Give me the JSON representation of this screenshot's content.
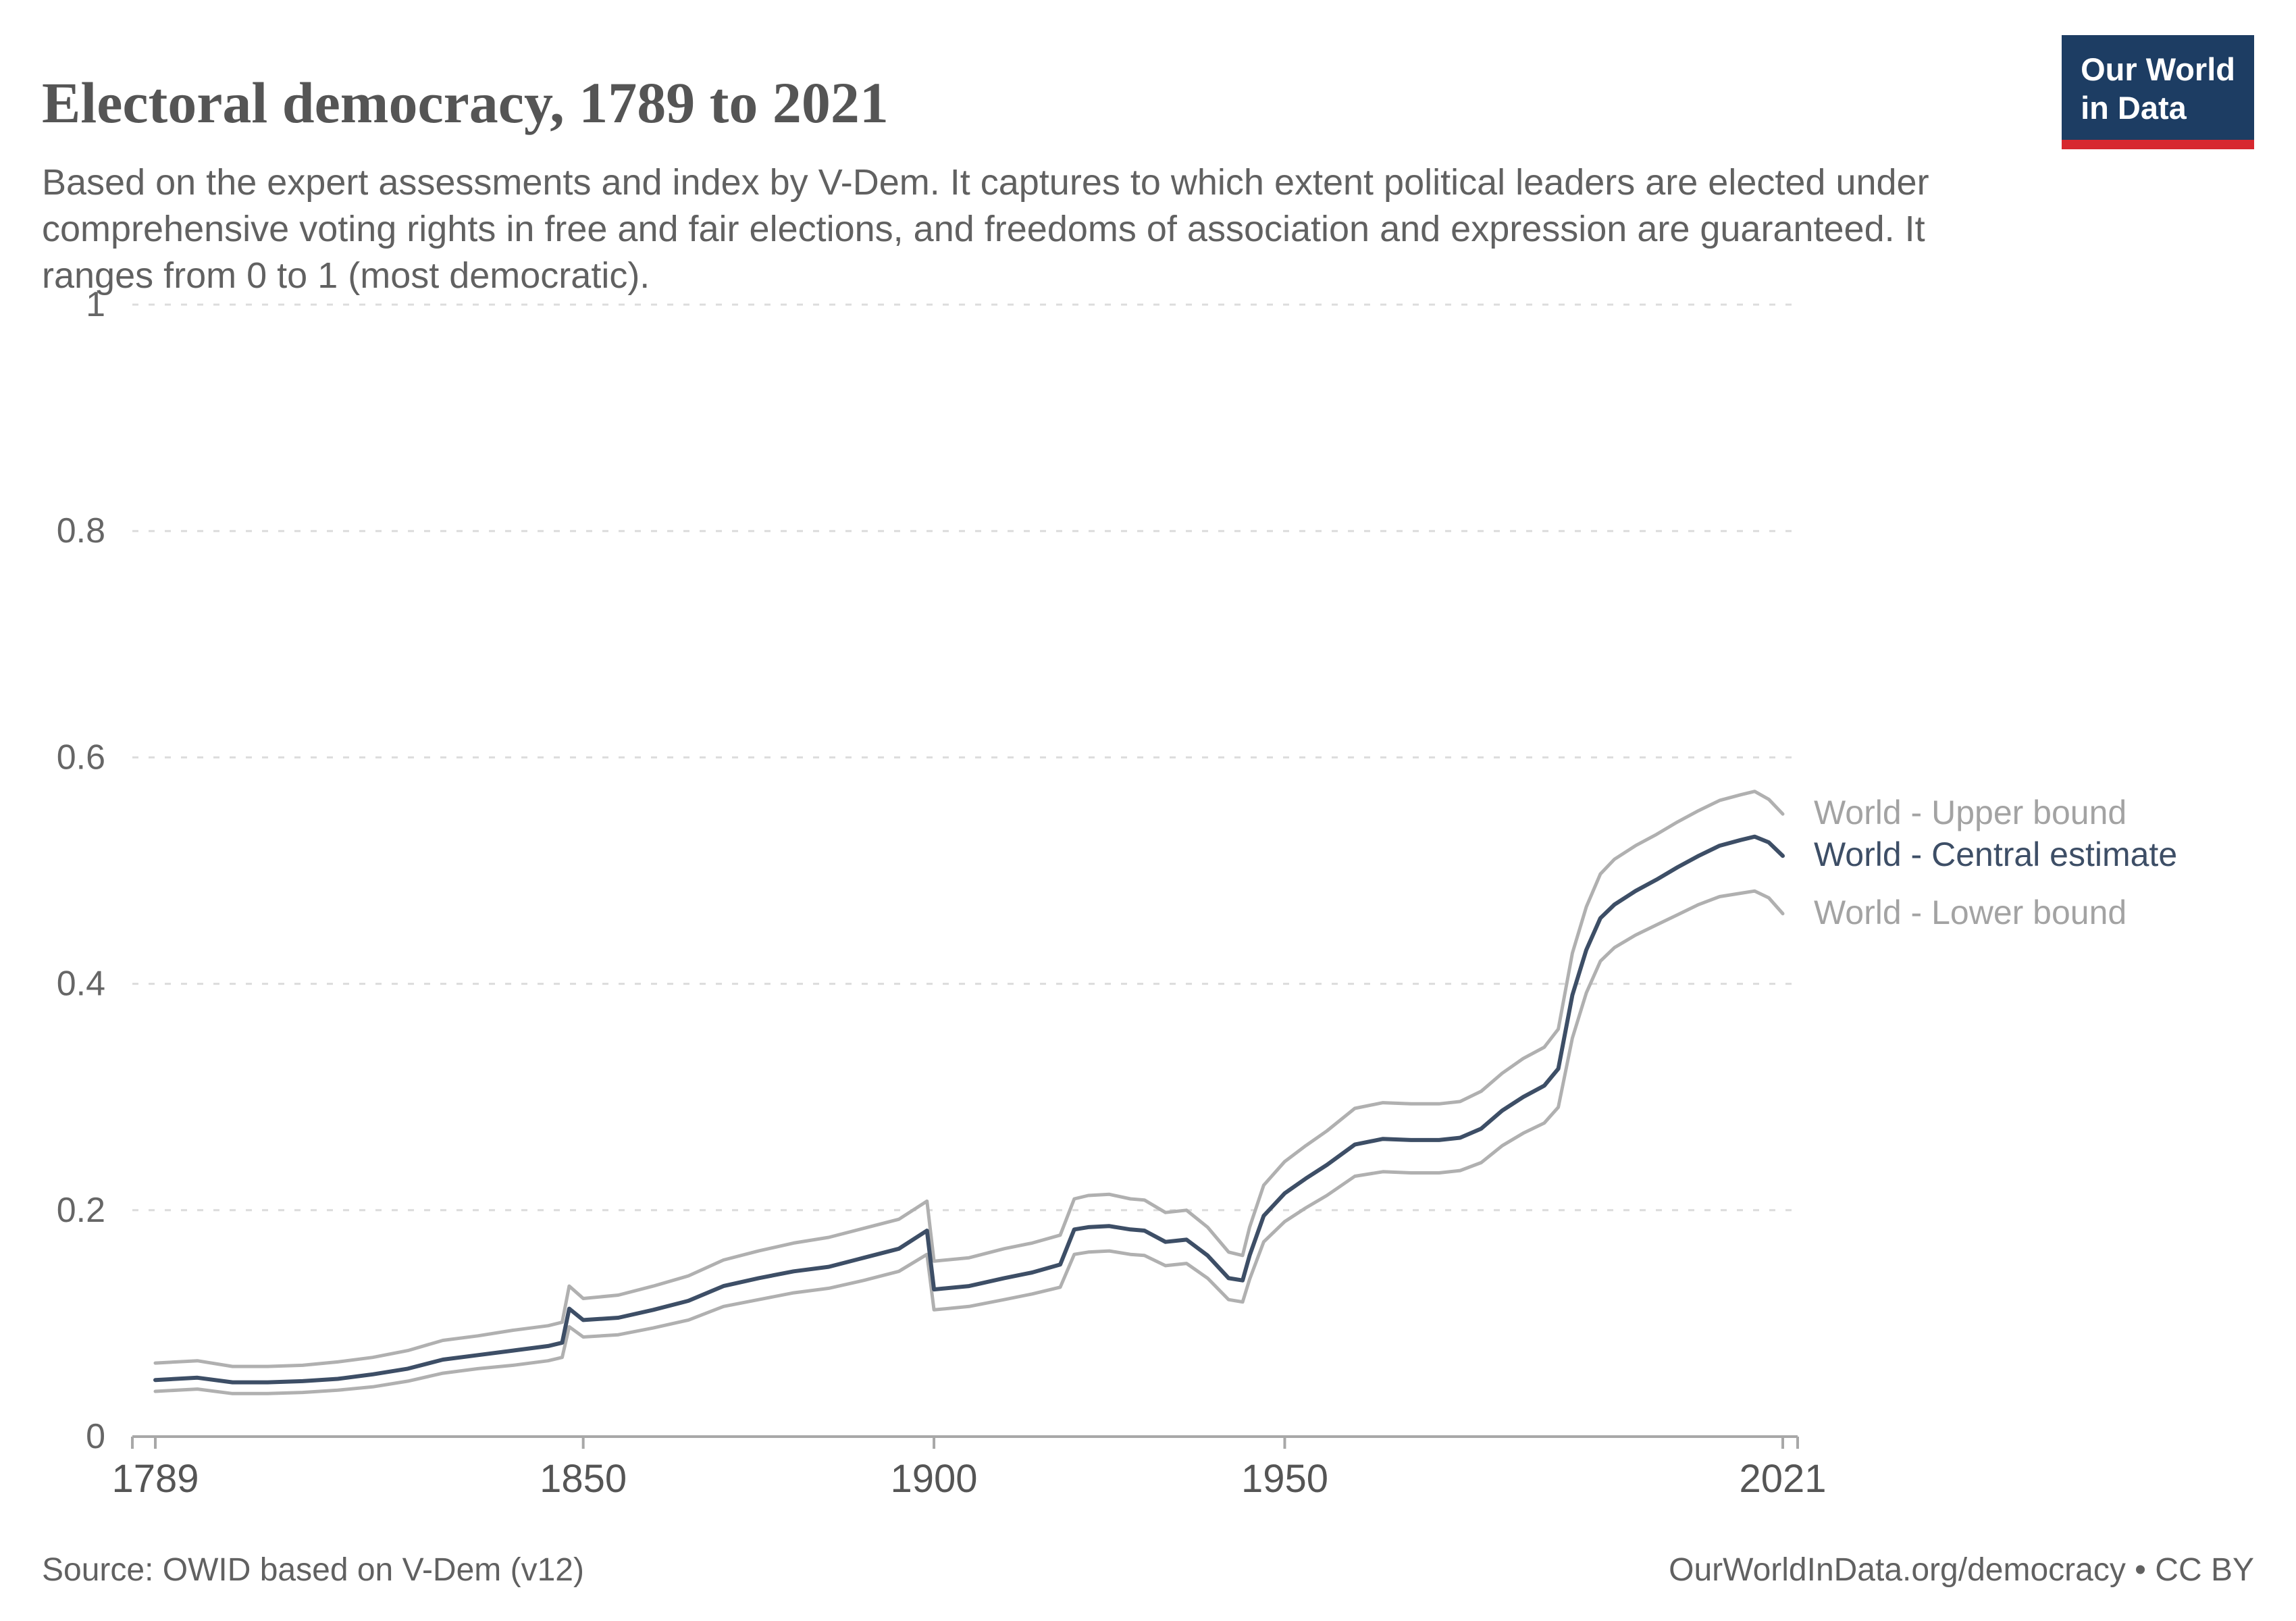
{
  "header": {
    "title": "Electoral democracy, 1789 to 2021",
    "subtitle": "Based on the expert assessments and index by V-Dem. It captures to which extent political leaders are elected under comprehensive voting rights in free and fair elections, and freedoms of association and expression are guaranteed. It ranges from 0 to 1 (most democratic)."
  },
  "brand": {
    "logo_line1": "Our World",
    "logo_line2": "in Data",
    "logo_bg": "#1d3d63",
    "logo_accent": "#d7282f"
  },
  "footer": {
    "source": "Source: OWID based on V-Dem (v12)",
    "credit": "OurWorldInData.org/democracy • CC BY"
  },
  "chart_data": {
    "type": "line",
    "title": "Electoral democracy, 1789 to 2021",
    "xlabel": "",
    "ylabel": "",
    "xlim": [
      1789,
      2021
    ],
    "ylim": [
      0,
      1
    ],
    "x_ticks": [
      1789,
      1850,
      1900,
      1950,
      2021
    ],
    "x_tick_labels": [
      "1789",
      "1850",
      "1900",
      "1950",
      "2021"
    ],
    "y_ticks": [
      0,
      0.2,
      0.4,
      0.6,
      0.8,
      1
    ],
    "y_tick_labels": [
      "0",
      "0.2",
      "0.4",
      "0.6",
      "0.8",
      "1"
    ],
    "grid": "horizontal-dashed",
    "legend_position": "right-of-line-ends",
    "colors": {
      "central": "#3d4e66",
      "bounds": "#b0b0b0",
      "legend_bounds_text": "#a3a3a3",
      "axis_text": "#666666",
      "x_axis_text": "#555555",
      "gridline": "#dcdcdc",
      "axis_line": "#a8a8a8"
    },
    "x": [
      1789,
      1795,
      1800,
      1805,
      1810,
      1815,
      1820,
      1825,
      1830,
      1835,
      1840,
      1845,
      1847,
      1848,
      1850,
      1855,
      1860,
      1865,
      1870,
      1875,
      1880,
      1885,
      1890,
      1895,
      1899,
      1900,
      1905,
      1910,
      1914,
      1918,
      1920,
      1922,
      1925,
      1928,
      1930,
      1933,
      1936,
      1939,
      1942,
      1944,
      1945,
      1947,
      1950,
      1953,
      1956,
      1960,
      1964,
      1968,
      1972,
      1975,
      1978,
      1981,
      1984,
      1987,
      1989,
      1991,
      1993,
      1995,
      1997,
      2000,
      2003,
      2006,
      2009,
      2012,
      2015,
      2017,
      2019,
      2021
    ],
    "series": [
      {
        "name": "World - Upper bound",
        "role": "upper",
        "values": [
          0.065,
          0.067,
          0.062,
          0.062,
          0.063,
          0.066,
          0.07,
          0.076,
          0.085,
          0.089,
          0.094,
          0.098,
          0.101,
          0.133,
          0.122,
          0.125,
          0.133,
          0.142,
          0.156,
          0.164,
          0.171,
          0.176,
          0.184,
          0.192,
          0.208,
          0.155,
          0.158,
          0.166,
          0.171,
          0.178,
          0.21,
          0.213,
          0.214,
          0.21,
          0.209,
          0.198,
          0.2,
          0.185,
          0.163,
          0.16,
          0.185,
          0.222,
          0.243,
          0.257,
          0.27,
          0.29,
          0.295,
          0.294,
          0.294,
          0.296,
          0.305,
          0.321,
          0.334,
          0.344,
          0.36,
          0.427,
          0.468,
          0.497,
          0.51,
          0.522,
          0.532,
          0.543,
          0.553,
          0.562,
          0.567,
          0.57,
          0.563,
          0.55
        ]
      },
      {
        "name": "World - Central estimate",
        "role": "central",
        "values": [
          0.05,
          0.052,
          0.048,
          0.048,
          0.049,
          0.051,
          0.055,
          0.06,
          0.068,
          0.072,
          0.076,
          0.08,
          0.083,
          0.113,
          0.103,
          0.105,
          0.112,
          0.12,
          0.133,
          0.14,
          0.146,
          0.15,
          0.158,
          0.166,
          0.182,
          0.13,
          0.133,
          0.14,
          0.145,
          0.152,
          0.183,
          0.185,
          0.186,
          0.183,
          0.182,
          0.172,
          0.174,
          0.16,
          0.14,
          0.138,
          0.16,
          0.195,
          0.215,
          0.228,
          0.24,
          0.258,
          0.263,
          0.262,
          0.262,
          0.264,
          0.272,
          0.288,
          0.3,
          0.31,
          0.325,
          0.39,
          0.43,
          0.458,
          0.47,
          0.482,
          0.492,
          0.503,
          0.513,
          0.522,
          0.527,
          0.53,
          0.525,
          0.513
        ]
      },
      {
        "name": "World - Lower bound",
        "role": "lower",
        "values": [
          0.04,
          0.042,
          0.038,
          0.038,
          0.039,
          0.041,
          0.044,
          0.049,
          0.056,
          0.06,
          0.063,
          0.067,
          0.07,
          0.097,
          0.088,
          0.09,
          0.096,
          0.103,
          0.115,
          0.121,
          0.127,
          0.131,
          0.138,
          0.146,
          0.161,
          0.112,
          0.115,
          0.121,
          0.126,
          0.132,
          0.161,
          0.163,
          0.164,
          0.161,
          0.16,
          0.151,
          0.153,
          0.14,
          0.121,
          0.119,
          0.139,
          0.172,
          0.19,
          0.202,
          0.213,
          0.23,
          0.234,
          0.233,
          0.233,
          0.235,
          0.242,
          0.257,
          0.268,
          0.277,
          0.291,
          0.352,
          0.392,
          0.42,
          0.432,
          0.443,
          0.452,
          0.461,
          0.47,
          0.477,
          0.48,
          0.482,
          0.476,
          0.462
        ]
      }
    ]
  }
}
